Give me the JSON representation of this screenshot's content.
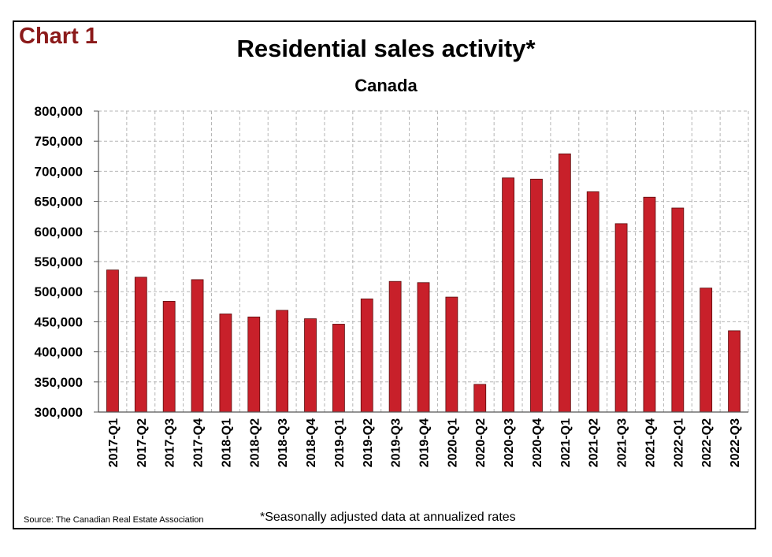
{
  "header": {
    "chart_label": "Chart 1",
    "title": "Residential sales activity*",
    "subtitle": "Canada"
  },
  "footer": {
    "source": "Source: The Canadian Real Estate Association",
    "footnote": "*Seasonally adjusted data at annualized rates"
  },
  "colors": {
    "bar": "#c8202a",
    "bar_stroke": "#5a0d0d",
    "chart_label": "#8b1a1a",
    "grid": "#b5b5b5"
  },
  "chart_data": {
    "type": "bar",
    "title": "Residential sales activity*",
    "subtitle": "Canada",
    "categories": [
      "2017-Q1",
      "2017-Q2",
      "2017-Q3",
      "2017-Q4",
      "2018-Q1",
      "2018-Q2",
      "2018-Q3",
      "2018-Q4",
      "2019-Q1",
      "2019-Q2",
      "2019-Q3",
      "2019-Q4",
      "2020-Q1",
      "2020-Q2",
      "2020-Q3",
      "2020-Q4",
      "2021-Q1",
      "2021-Q2",
      "2021-Q3",
      "2021-Q4",
      "2022-Q1",
      "2022-Q2",
      "2022-Q3"
    ],
    "values": [
      536000,
      524000,
      484000,
      520000,
      463000,
      458000,
      469000,
      455000,
      446000,
      488000,
      517000,
      515000,
      491000,
      346000,
      689000,
      687000,
      729000,
      666000,
      613000,
      657000,
      639000,
      506000,
      435000
    ],
    "ylim": [
      300000,
      800000
    ],
    "yticks": [
      "300,000",
      "350,000",
      "400,000",
      "450,000",
      "500,000",
      "550,000",
      "600,000",
      "650,000",
      "700,000",
      "750,000",
      "800,000"
    ],
    "xlabel": "",
    "ylabel": "",
    "grid": true
  }
}
